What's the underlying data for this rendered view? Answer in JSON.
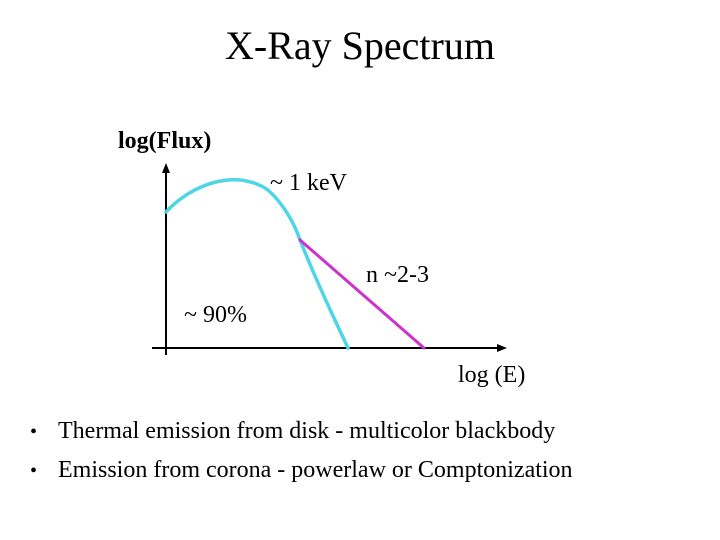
{
  "slide": {
    "title": "X-Ray Spectrum"
  },
  "figure": {
    "y_axis_label": "log(Flux)",
    "x_axis_label": "log (E)",
    "annotations": {
      "thermal_peak": "~ 1 keV",
      "powerlaw_index": "n ~2-3",
      "thermal_fraction": "~ 90%"
    },
    "colors": {
      "thermal_curve": "#4dd6e6",
      "powerlaw_line": "#cc33cc",
      "axes": "#000000"
    }
  },
  "bullets": [
    {
      "marker": "•",
      "text": "Thermal emission from disk - multicolor blackbody"
    },
    {
      "marker": "•",
      "text": "Emission from corona - powerlaw or Comptonization"
    }
  ]
}
